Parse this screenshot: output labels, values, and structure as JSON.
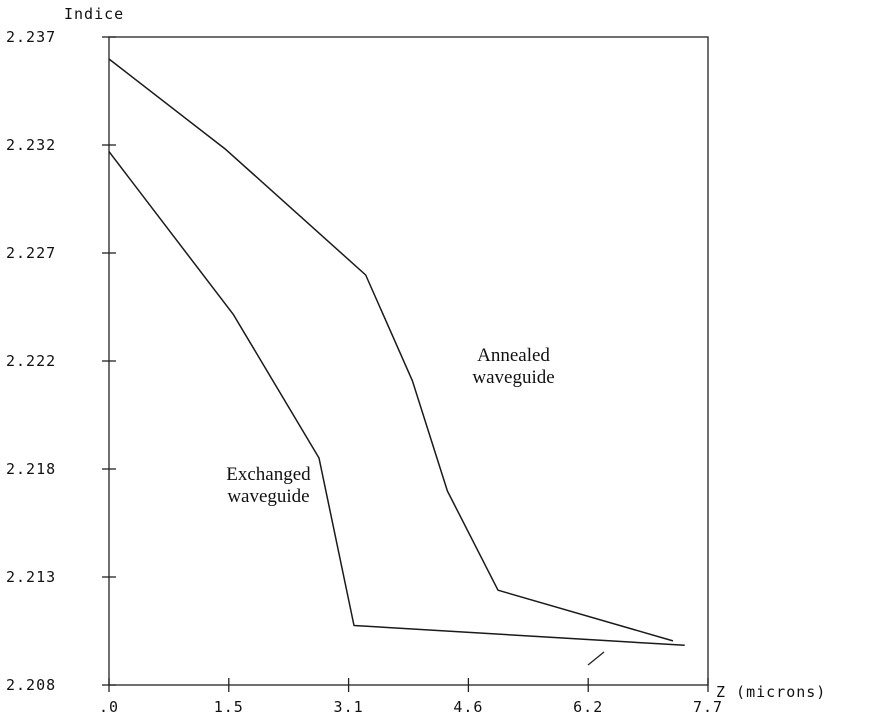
{
  "chart_data": {
    "type": "line",
    "title": "",
    "xlabel": "Z (microns)",
    "ylabel": "Indice",
    "x_tick_labels": [
      ".0",
      "1.5",
      "3.1",
      "4.6",
      "6.2",
      "7.7"
    ],
    "x_ticks": [
      0.0,
      1.54,
      3.08,
      4.62,
      6.16,
      7.7
    ],
    "y_tick_labels": [
      "2.208",
      "2.213",
      "2.218",
      "2.222",
      "2.227",
      "2.232",
      "2.237"
    ],
    "y_ticks": [
      2.2075,
      2.2124,
      2.2173,
      2.2222,
      2.2271,
      2.232,
      2.2369
    ],
    "xlim": [
      0,
      7.7
    ],
    "ylim": [
      2.2075,
      2.2369
    ],
    "grid": false,
    "legend": "none",
    "series": [
      {
        "name": "Annealed waveguide",
        "x": [
          0.0,
          1.5,
          3.3,
          3.9,
          4.35,
          5.0,
          7.25
        ],
        "y": [
          2.2359,
          2.2318,
          2.2261,
          2.2213,
          2.2163,
          2.2118,
          2.2095
        ]
      },
      {
        "name": "Exchanged waveguide",
        "x": [
          0.0,
          1.6,
          2.7,
          3.15,
          7.4
        ],
        "y": [
          2.2317,
          2.2243,
          2.2178,
          2.2102,
          2.2093
        ]
      }
    ],
    "annotations": [
      {
        "text_lines": [
          "Annealed",
          "waveguide"
        ],
        "x": 5.2,
        "y": 2.2222
      },
      {
        "text_lines": [
          "Exchanged",
          "waveguide"
        ],
        "x": 2.05,
        "y": 2.2168
      }
    ]
  }
}
